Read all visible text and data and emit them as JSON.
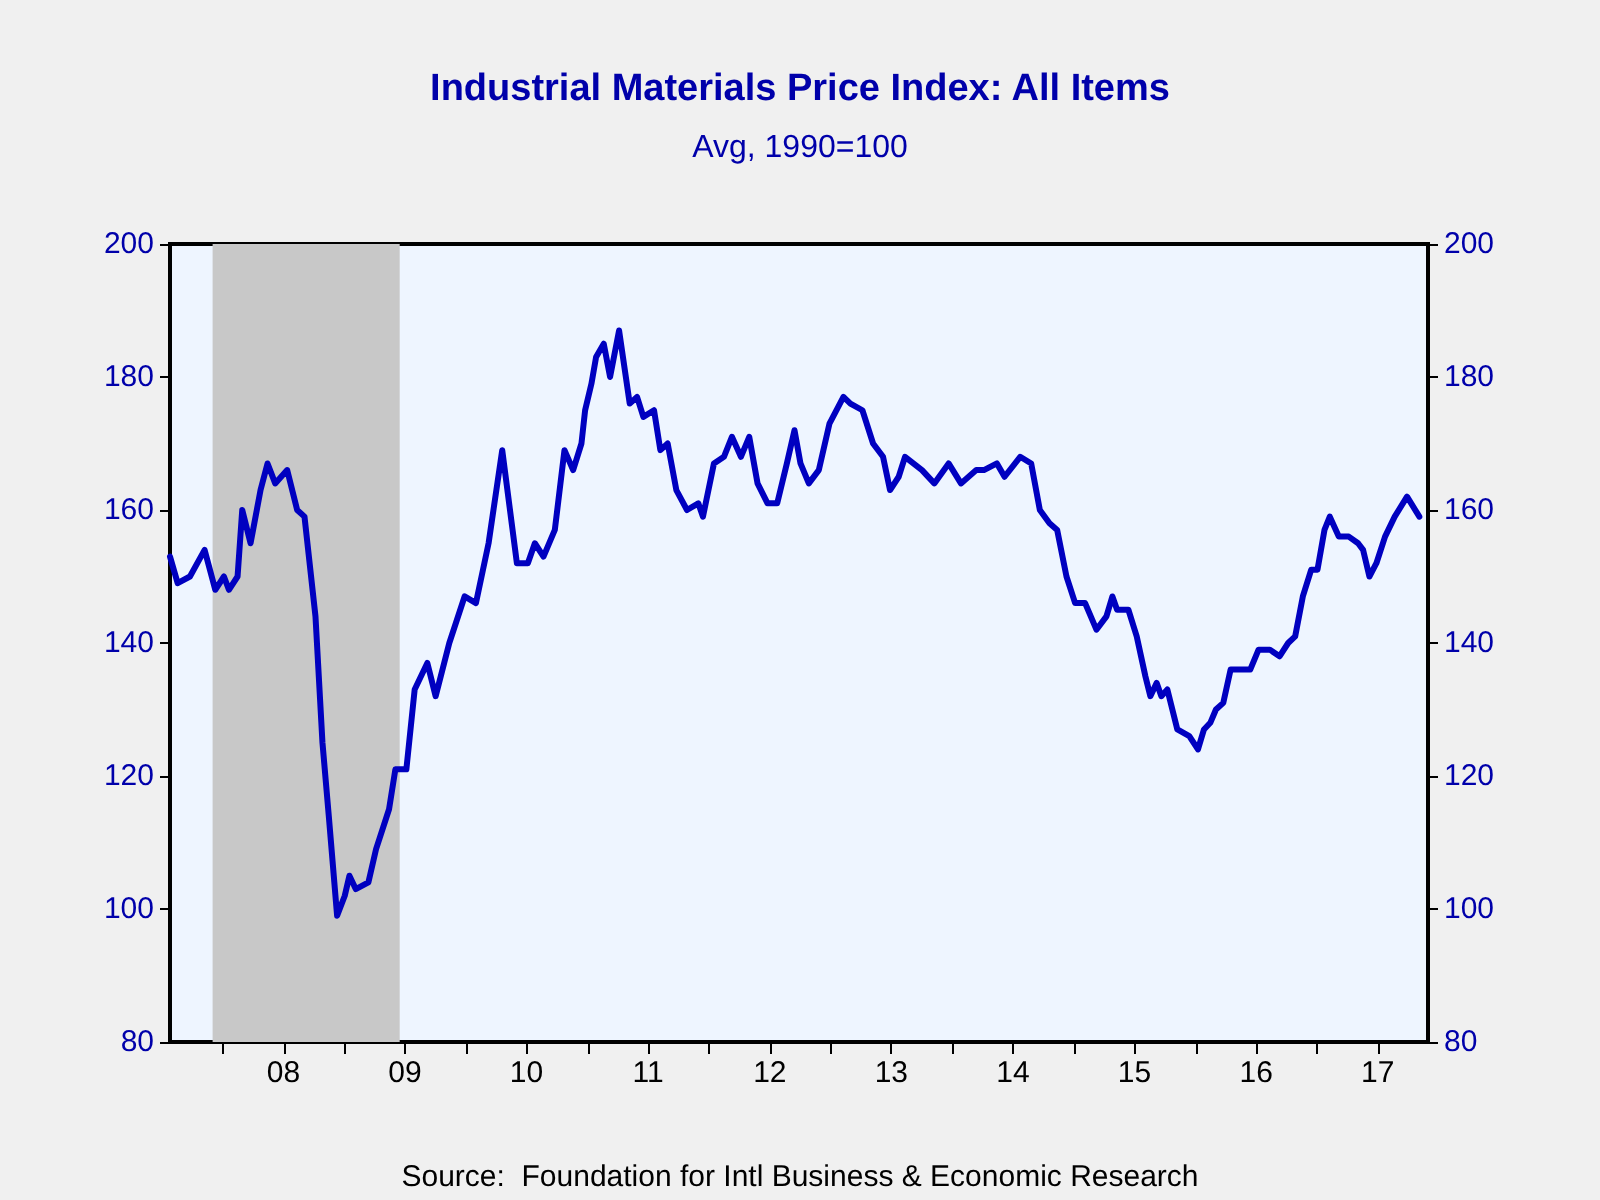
{
  "chart_data": {
    "type": "line",
    "title": "Industrial Materials Price Index: All Items",
    "subtitle": "Avg, 1990=100",
    "annotations": [
      "Source:  Foundation for Intl Business & Economic Research"
    ],
    "x": [
      "2007-07-26",
      "2007-08-18",
      "2007-09-24",
      "2007-11-07",
      "2007-12-09",
      "2008-01-04",
      "2008-01-19",
      "2008-02-14",
      "2008-02-28",
      "2008-03-24",
      "2008-04-23",
      "2008-05-14",
      "2008-06-06",
      "2008-07-12",
      "2008-08-11",
      "2008-09-02",
      "2008-10-05",
      "2008-10-26",
      "2008-11-14",
      "2008-12-09",
      "2009-01-01",
      "2009-01-15",
      "2009-02-03",
      "2009-03-13",
      "2009-04-05",
      "2009-05-14",
      "2009-06-02",
      "2009-07-05",
      "2009-07-30",
      "2009-09-06",
      "2009-10-01",
      "2009-11-11",
      "2009-12-27",
      "2010-01-30",
      "2010-03-09",
      "2010-04-19",
      "2010-06-02",
      "2010-07-05",
      "2010-07-26",
      "2010-08-21",
      "2010-09-24",
      "2010-10-23",
      "2010-11-18",
      "2010-12-13",
      "2010-12-24",
      "2011-01-12",
      "2011-01-26",
      "2011-02-18",
      "2011-03-09",
      "2011-04-05",
      "2011-05-07",
      "2011-05-29",
      "2011-06-17",
      "2011-07-19",
      "2011-08-07",
      "2011-08-29",
      "2011-09-24",
      "2011-10-26",
      "2011-11-29",
      "2011-12-13",
      "2012-01-15",
      "2012-02-14",
      "2012-03-09",
      "2012-04-05",
      "2012-04-30",
      "2012-05-25",
      "2012-06-24",
      "2012-07-23",
      "2012-08-21",
      "2012-09-13",
      "2012-10-01",
      "2012-10-26",
      "2012-11-25",
      "2012-12-27",
      "2013-02-07",
      "2013-02-28",
      "2013-04-05",
      "2013-05-07",
      "2013-06-06",
      "2013-06-27",
      "2013-07-23",
      "2013-08-11",
      "2013-10-01",
      "2013-11-07",
      "2013-12-20",
      "2014-01-26",
      "2014-03-13",
      "2014-04-05",
      "2014-05-14",
      "2014-06-06",
      "2014-07-23",
      "2014-08-25",
      "2014-09-20",
      "2014-10-19",
      "2014-11-11",
      "2014-12-09",
      "2015-01-04",
      "2015-02-03",
      "2015-03-09",
      "2015-04-08",
      "2015-04-26",
      "2015-05-10",
      "2015-06-13",
      "2015-07-08",
      "2015-08-03",
      "2015-08-18",
      "2015-09-06",
      "2015-09-20",
      "2015-10-08",
      "2015-11-07",
      "2015-12-13",
      "2016-01-08",
      "2016-01-26",
      "2016-02-14",
      "2016-03-02",
      "2016-03-24",
      "2016-04-15",
      "2016-05-18",
      "2016-06-13",
      "2016-07-08",
      "2016-08-11",
      "2016-09-09",
      "2016-10-05",
      "2016-10-26",
      "2016-11-18",
      "2016-12-13",
      "2017-01-01",
      "2017-01-22",
      "2017-02-07",
      "2017-03-06",
      "2017-04-05",
      "2017-05-03",
      "2017-05-18",
      "2017-06-06",
      "2017-06-27",
      "2017-07-23",
      "2017-08-21",
      "2017-09-27",
      "2017-11-03"
    ],
    "series": [
      {
        "color": "#0000c0",
        "values": [
          153,
          149,
          150,
          154,
          148,
          150,
          148,
          150,
          160,
          155,
          163,
          167,
          164,
          166,
          160,
          159,
          144,
          125,
          114,
          99,
          102,
          105,
          103,
          104,
          109,
          115,
          121,
          121,
          133,
          137,
          132,
          140,
          147,
          146,
          155,
          169,
          152,
          152,
          155,
          153,
          157,
          169,
          166,
          170,
          175,
          179,
          183,
          185,
          180,
          187,
          176,
          177,
          174,
          175,
          169,
          170,
          163,
          160,
          161,
          159,
          167,
          168,
          171,
          168,
          171,
          164,
          161,
          161,
          167,
          172,
          167,
          164,
          166,
          173,
          177,
          176,
          175,
          170,
          168,
          163,
          165,
          168,
          166,
          164,
          167,
          164,
          166,
          166,
          167,
          165,
          168,
          167,
          160,
          158,
          157,
          150,
          146,
          146,
          142,
          144,
          147,
          145,
          145,
          141,
          135,
          132,
          134,
          132,
          133,
          127,
          126,
          124,
          127,
          128,
          130,
          131,
          136,
          136,
          136,
          139,
          139,
          138,
          140,
          141,
          147,
          151,
          151,
          157,
          159,
          156,
          156,
          155,
          154,
          150,
          152,
          156,
          159,
          162,
          159
        ]
      }
    ],
    "xlim": [
      "2007-07-26",
      "2017-11-29"
    ],
    "xticks": [
      {
        "value": "2008-01-01",
        "label": null
      },
      {
        "value": "2008-07-01",
        "label": "08"
      },
      {
        "value": "2009-01-01",
        "label": null
      },
      {
        "value": "2009-07-01",
        "label": "09"
      },
      {
        "value": "2010-01-01",
        "label": null
      },
      {
        "value": "2010-07-01",
        "label": "10"
      },
      {
        "value": "2011-01-01",
        "label": null
      },
      {
        "value": "2011-07-01",
        "label": "11"
      },
      {
        "value": "2012-01-01",
        "label": null
      },
      {
        "value": "2012-07-01",
        "label": "12"
      },
      {
        "value": "2013-01-01",
        "label": null
      },
      {
        "value": "2013-07-01",
        "label": "13"
      },
      {
        "value": "2014-01-01",
        "label": null
      },
      {
        "value": "2014-07-01",
        "label": "14"
      },
      {
        "value": "2015-01-01",
        "label": null
      },
      {
        "value": "2015-07-01",
        "label": "15"
      },
      {
        "value": "2016-01-01",
        "label": null
      },
      {
        "value": "2016-07-01",
        "label": "16"
      },
      {
        "value": "2017-01-01",
        "label": null
      },
      {
        "value": "2017-07-01",
        "label": "17"
      }
    ],
    "ylim": [
      80,
      200
    ],
    "yticks": [
      80,
      100,
      120,
      140,
      160,
      180,
      200
    ],
    "y2lim": [
      80,
      200
    ],
    "y2ticks": [
      80,
      100,
      120,
      140,
      160,
      180,
      200
    ],
    "bands": [
      {
        "axis": "x",
        "from": "2007-12-01",
        "to": "2009-06-15",
        "color": "#c8c8c8"
      }
    ],
    "grid": false,
    "marker": "none",
    "line_style": "solid"
  }
}
